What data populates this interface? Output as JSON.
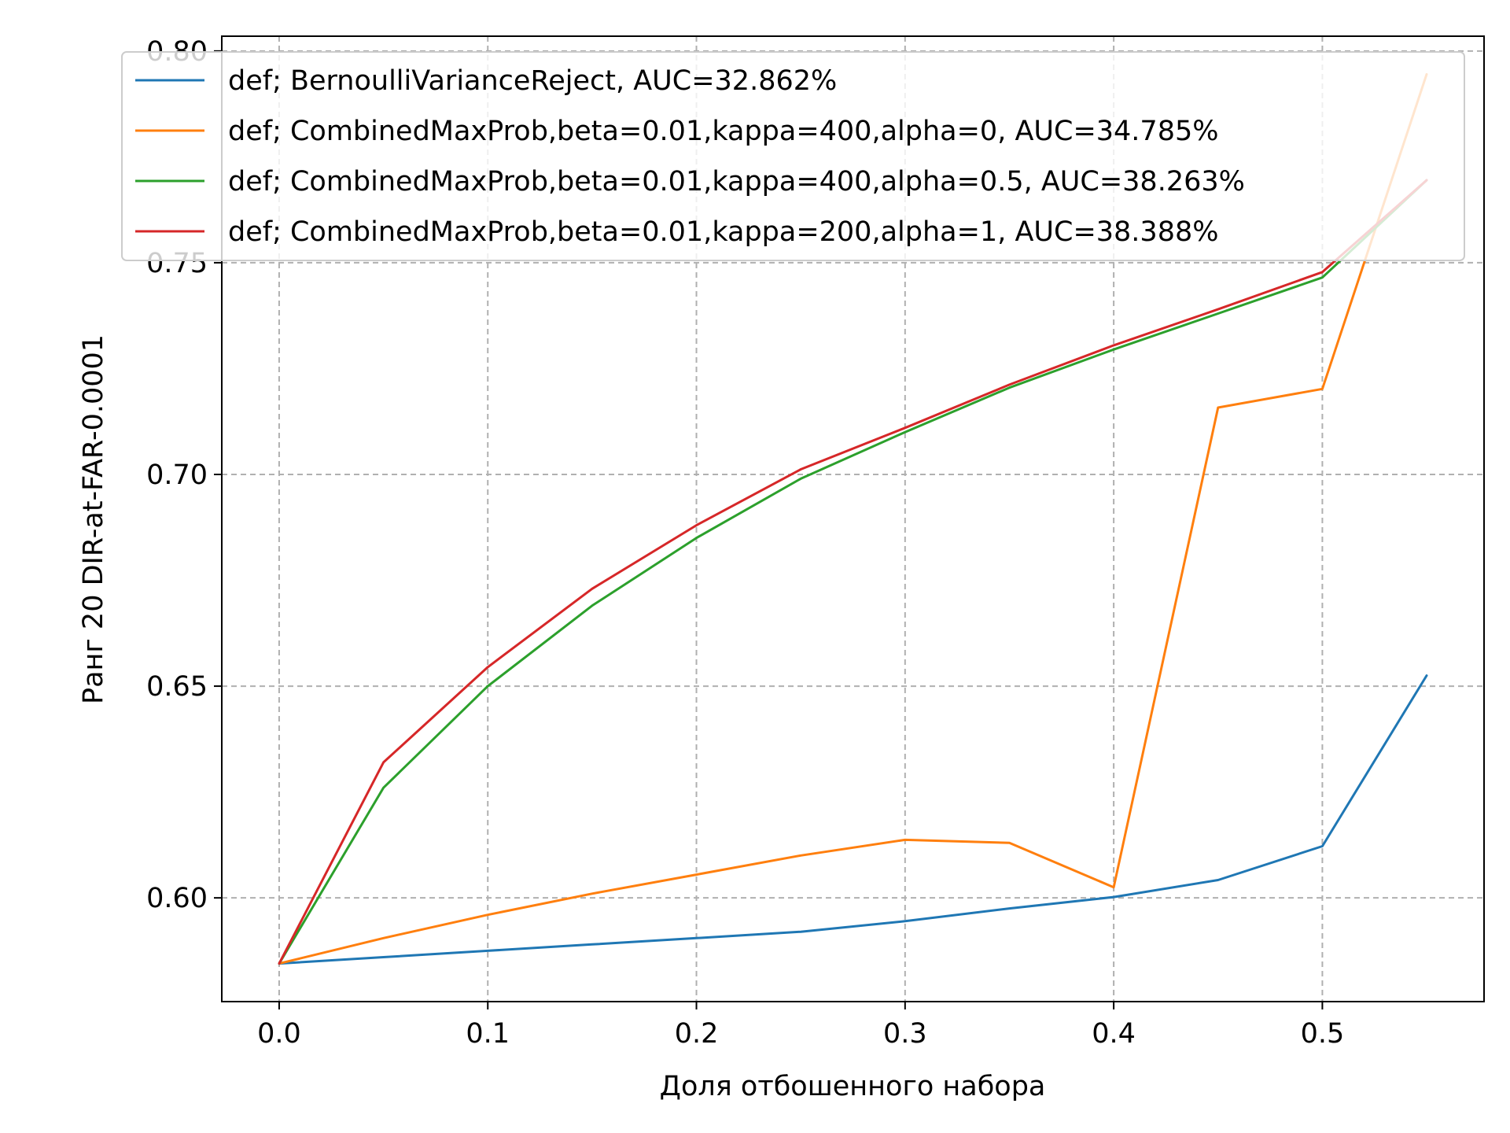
{
  "chart_data": {
    "type": "line",
    "title": "",
    "xlabel": "Доля отбошенного набора",
    "ylabel": "Ранг 20 DIR-at-FAR-0.0001",
    "xlim": [
      -0.0275,
      0.5775
    ],
    "ylim": [
      0.5755,
      0.8035
    ],
    "xticks": [
      0.0,
      0.1,
      0.2,
      0.3,
      0.4,
      0.5
    ],
    "xtick_labels": [
      "0.0",
      "0.1",
      "0.2",
      "0.3",
      "0.4",
      "0.5"
    ],
    "yticks": [
      0.6,
      0.65,
      0.7,
      0.75,
      0.8
    ],
    "ytick_labels": [
      "0.60",
      "0.65",
      "0.70",
      "0.75",
      "0.80"
    ],
    "grid": true,
    "legend_position": "top-right",
    "x": [
      0.0,
      0.05,
      0.1,
      0.15,
      0.2,
      0.25,
      0.3,
      0.35,
      0.4,
      0.45,
      0.5,
      0.55
    ],
    "series": [
      {
        "name": "def;  BernoulliVarianceReject, AUC=32.862%",
        "color": "#1f77b4",
        "values": [
          0.5845,
          0.586,
          0.5875,
          0.589,
          0.5905,
          0.592,
          0.5945,
          0.5975,
          0.6002,
          0.6042,
          0.6122,
          0.6525
        ]
      },
      {
        "name": "def;  CombinedMaxProb,beta=0.01,kappa=400,alpha=0, AUC=34.785%",
        "color": "#ff7f0e",
        "values": [
          0.5845,
          0.5905,
          0.596,
          0.601,
          0.6055,
          0.61,
          0.6137,
          0.613,
          0.6025,
          0.7158,
          0.7202,
          0.7945
        ]
      },
      {
        "name": "def;  CombinedMaxProb,beta=0.01,kappa=400,alpha=0.5, AUC=38.263%",
        "color": "#2ca02c",
        "values": [
          0.5845,
          0.626,
          0.65,
          0.669,
          0.685,
          0.699,
          0.71,
          0.7205,
          0.7295,
          0.738,
          0.7465,
          0.7695
        ]
      },
      {
        "name": "def;  CombinedMaxProb,beta=0.01,kappa=200,alpha=1, AUC=38.388%",
        "color": "#d62728",
        "values": [
          0.5845,
          0.632,
          0.6545,
          0.673,
          0.688,
          0.7012,
          0.711,
          0.7212,
          0.7305,
          0.739,
          0.7478,
          0.7695
        ]
      }
    ]
  }
}
